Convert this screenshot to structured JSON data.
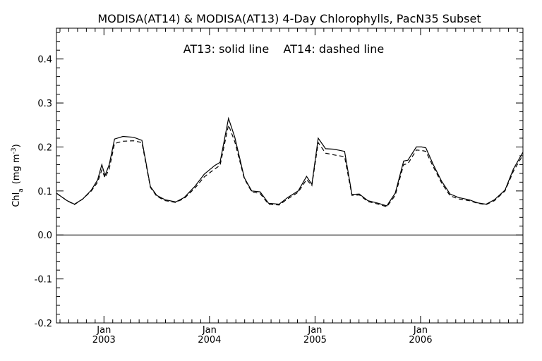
{
  "chart_data": {
    "type": "line",
    "title": "MODISA(AT14) & MODISA(AT13) 4-Day Chlorophylls, PacN35 Subset",
    "annotation": "AT13: solid line    AT14: dashed line",
    "ylabel_main": "Chl",
    "ylabel_sub": "a",
    "ylabel_unit": "(mg m",
    "ylabel_exp": "-3",
    "ylabel_close": ")",
    "xlim": [
      2002.55,
      2006.97
    ],
    "ylim": [
      -0.2,
      0.47
    ],
    "grid": false,
    "y_ticks": [
      {
        "value": -0.2,
        "label": "-0.2"
      },
      {
        "value": -0.1,
        "label": "-0.1"
      },
      {
        "value": 0.0,
        "label": "0.0"
      },
      {
        "value": 0.1,
        "label": "0.1"
      },
      {
        "value": 0.2,
        "label": "0.2"
      },
      {
        "value": 0.3,
        "label": "0.3"
      },
      {
        "value": 0.4,
        "label": "0.4"
      }
    ],
    "x_ticks": [
      {
        "value": 2003.0,
        "label": "Jan",
        "year": "2003"
      },
      {
        "value": 2004.0,
        "label": "Jan",
        "year": "2004"
      },
      {
        "value": 2005.0,
        "label": "Jan",
        "year": "2005"
      },
      {
        "value": 2006.0,
        "label": "Jan",
        "year": "2006"
      }
    ],
    "zero_line": 0.0,
    "series": [
      {
        "style": "solid",
        "points": [
          [
            2002.55,
            0.095
          ],
          [
            2002.65,
            0.078
          ],
          [
            2002.72,
            0.07
          ],
          [
            2002.8,
            0.082
          ],
          [
            2002.88,
            0.102
          ],
          [
            2002.94,
            0.125
          ],
          [
            2002.98,
            0.16
          ],
          [
            2003.01,
            0.135
          ],
          [
            2003.05,
            0.16
          ],
          [
            2003.1,
            0.218
          ],
          [
            2003.18,
            0.224
          ],
          [
            2003.28,
            0.222
          ],
          [
            2003.36,
            0.215
          ],
          [
            2003.44,
            0.11
          ],
          [
            2003.5,
            0.09
          ],
          [
            2003.58,
            0.08
          ],
          [
            2003.68,
            0.075
          ],
          [
            2003.76,
            0.085
          ],
          [
            2003.86,
            0.11
          ],
          [
            2003.95,
            0.138
          ],
          [
            2004.05,
            0.158
          ],
          [
            2004.1,
            0.165
          ],
          [
            2004.18,
            0.265
          ],
          [
            2004.24,
            0.222
          ],
          [
            2004.33,
            0.13
          ],
          [
            2004.4,
            0.1
          ],
          [
            2004.48,
            0.098
          ],
          [
            2004.56,
            0.072
          ],
          [
            2004.66,
            0.07
          ],
          [
            2004.74,
            0.085
          ],
          [
            2004.84,
            0.1
          ],
          [
            2004.92,
            0.133
          ],
          [
            2004.97,
            0.115
          ],
          [
            2005.03,
            0.22
          ],
          [
            2005.1,
            0.196
          ],
          [
            2005.18,
            0.195
          ],
          [
            2005.28,
            0.19
          ],
          [
            2005.35,
            0.092
          ],
          [
            2005.42,
            0.093
          ],
          [
            2005.5,
            0.078
          ],
          [
            2005.6,
            0.072
          ],
          [
            2005.68,
            0.066
          ],
          [
            2005.76,
            0.095
          ],
          [
            2005.84,
            0.168
          ],
          [
            2005.88,
            0.17
          ],
          [
            2005.96,
            0.2
          ],
          [
            2006.01,
            0.2
          ],
          [
            2006.05,
            0.198
          ],
          [
            2006.12,
            0.16
          ],
          [
            2006.2,
            0.122
          ],
          [
            2006.28,
            0.093
          ],
          [
            2006.36,
            0.085
          ],
          [
            2006.46,
            0.08
          ],
          [
            2006.54,
            0.073
          ],
          [
            2006.62,
            0.07
          ],
          [
            2006.7,
            0.08
          ],
          [
            2006.8,
            0.102
          ],
          [
            2006.88,
            0.15
          ],
          [
            2006.97,
            0.188
          ]
        ]
      },
      {
        "style": "dashed",
        "points": [
          [
            2002.55,
            0.095
          ],
          [
            2002.65,
            0.078
          ],
          [
            2002.72,
            0.069
          ],
          [
            2002.8,
            0.082
          ],
          [
            2002.88,
            0.1
          ],
          [
            2002.94,
            0.12
          ],
          [
            2002.98,
            0.148
          ],
          [
            2003.01,
            0.13
          ],
          [
            2003.05,
            0.15
          ],
          [
            2003.1,
            0.208
          ],
          [
            2003.18,
            0.213
          ],
          [
            2003.28,
            0.214
          ],
          [
            2003.36,
            0.21
          ],
          [
            2003.44,
            0.108
          ],
          [
            2003.5,
            0.088
          ],
          [
            2003.58,
            0.078
          ],
          [
            2003.68,
            0.074
          ],
          [
            2003.76,
            0.083
          ],
          [
            2003.86,
            0.106
          ],
          [
            2003.95,
            0.132
          ],
          [
            2004.05,
            0.15
          ],
          [
            2004.1,
            0.158
          ],
          [
            2004.18,
            0.25
          ],
          [
            2004.24,
            0.212
          ],
          [
            2004.33,
            0.128
          ],
          [
            2004.4,
            0.098
          ],
          [
            2004.48,
            0.094
          ],
          [
            2004.56,
            0.07
          ],
          [
            2004.66,
            0.068
          ],
          [
            2004.74,
            0.082
          ],
          [
            2004.84,
            0.097
          ],
          [
            2004.92,
            0.126
          ],
          [
            2004.97,
            0.112
          ],
          [
            2005.03,
            0.21
          ],
          [
            2005.1,
            0.186
          ],
          [
            2005.18,
            0.182
          ],
          [
            2005.28,
            0.178
          ],
          [
            2005.35,
            0.09
          ],
          [
            2005.42,
            0.091
          ],
          [
            2005.5,
            0.076
          ],
          [
            2005.6,
            0.07
          ],
          [
            2005.68,
            0.064
          ],
          [
            2005.76,
            0.09
          ],
          [
            2005.84,
            0.16
          ],
          [
            2005.88,
            0.162
          ],
          [
            2005.96,
            0.193
          ],
          [
            2006.01,
            0.192
          ],
          [
            2006.05,
            0.19
          ],
          [
            2006.12,
            0.155
          ],
          [
            2006.2,
            0.118
          ],
          [
            2006.28,
            0.089
          ],
          [
            2006.36,
            0.082
          ],
          [
            2006.46,
            0.078
          ],
          [
            2006.54,
            0.072
          ],
          [
            2006.62,
            0.069
          ],
          [
            2006.7,
            0.078
          ],
          [
            2006.8,
            0.1
          ],
          [
            2006.88,
            0.145
          ],
          [
            2006.97,
            0.182
          ]
        ]
      }
    ]
  }
}
